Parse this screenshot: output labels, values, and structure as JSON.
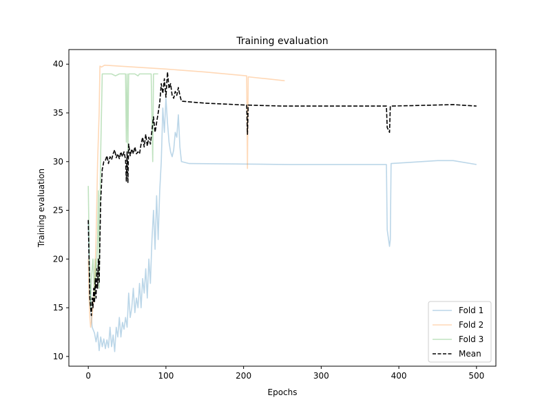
{
  "chart_data": {
    "type": "line",
    "title": "Training evaluation",
    "xlabel": "Epochs",
    "ylabel": "Training evaluation",
    "xlim": [
      -25,
      525
    ],
    "ylim": [
      9.0,
      41.5
    ],
    "xticks": [
      0,
      100,
      200,
      300,
      400,
      500
    ],
    "yticks": [
      10,
      15,
      20,
      25,
      30,
      35,
      40
    ],
    "grid": false,
    "legend": "lower-right",
    "series": [
      {
        "name": "Fold 1",
        "color": "#1f77b4",
        "alpha": 0.3,
        "dashed": false,
        "points": [
          [
            0,
            24
          ],
          [
            1,
            20
          ],
          [
            2,
            17
          ],
          [
            3,
            15
          ],
          [
            4,
            14
          ],
          [
            5,
            13
          ],
          [
            6,
            12.8
          ],
          [
            8,
            12.4
          ],
          [
            10,
            11.5
          ],
          [
            12,
            12.5
          ],
          [
            14,
            10.6
          ],
          [
            16,
            12
          ],
          [
            18,
            11
          ],
          [
            20,
            11.8
          ],
          [
            22,
            10.8
          ],
          [
            24,
            11.7
          ],
          [
            26,
            10.9
          ],
          [
            28,
            13
          ],
          [
            30,
            11
          ],
          [
            32,
            12.2
          ],
          [
            34,
            10.5
          ],
          [
            36,
            13
          ],
          [
            38,
            12
          ],
          [
            40,
            14
          ],
          [
            42,
            12
          ],
          [
            44,
            13.5
          ],
          [
            46,
            12.8
          ],
          [
            48,
            14
          ],
          [
            50,
            13
          ],
          [
            52,
            16.5
          ],
          [
            54,
            14
          ],
          [
            56,
            15
          ],
          [
            58,
            17
          ],
          [
            60,
            14.5
          ],
          [
            62,
            16
          ],
          [
            64,
            15
          ],
          [
            66,
            17.5
          ],
          [
            68,
            15
          ],
          [
            70,
            18
          ],
          [
            72,
            16.5
          ],
          [
            74,
            19
          ],
          [
            76,
            16
          ],
          [
            78,
            20
          ],
          [
            80,
            17.5
          ],
          [
            82,
            22
          ],
          [
            84,
            25
          ],
          [
            86,
            21
          ],
          [
            88,
            26.5
          ],
          [
            90,
            22
          ],
          [
            92,
            27
          ],
          [
            94,
            30
          ],
          [
            96,
            35.5
          ],
          [
            98,
            33
          ],
          [
            100,
            36.5
          ],
          [
            102,
            34
          ],
          [
            104,
            32
          ],
          [
            106,
            31
          ],
          [
            108,
            30.5
          ],
          [
            110,
            31.2
          ],
          [
            112,
            33
          ],
          [
            114,
            32.5
          ],
          [
            116,
            34.8
          ],
          [
            118,
            31.5
          ],
          [
            120,
            30
          ],
          [
            130,
            29.8
          ],
          [
            200,
            29.75
          ],
          [
            260,
            29.7
          ],
          [
            300,
            29.7
          ],
          [
            384,
            29.7
          ],
          [
            385,
            23
          ],
          [
            388,
            21.3
          ],
          [
            389,
            22
          ],
          [
            390,
            29.8
          ],
          [
            410,
            29.9
          ],
          [
            450,
            30.1
          ],
          [
            470,
            30.1
          ],
          [
            500,
            29.7
          ]
        ]
      },
      {
        "name": "Fold 2",
        "color": "#ff7f0e",
        "alpha": 0.3,
        "dashed": false,
        "points": [
          [
            0,
            20
          ],
          [
            1,
            16
          ],
          [
            2,
            14
          ],
          [
            3,
            13
          ],
          [
            4,
            13.5
          ],
          [
            6,
            15
          ],
          [
            8,
            17
          ],
          [
            10,
            22
          ],
          [
            12,
            30
          ],
          [
            14,
            35
          ],
          [
            15,
            39.8
          ],
          [
            17,
            39.7
          ],
          [
            19,
            39.8
          ],
          [
            21,
            39.9
          ],
          [
            40,
            39.8
          ],
          [
            100,
            39.5
          ],
          [
            150,
            39.2
          ],
          [
            204,
            38.8
          ],
          [
            205,
            29.3
          ],
          [
            206,
            38.7
          ],
          [
            230,
            38.5
          ],
          [
            253,
            38.3
          ]
        ]
      },
      {
        "name": "Fold 3",
        "color": "#2ca02c",
        "alpha": 0.3,
        "dashed": false,
        "points": [
          [
            0,
            27.5
          ],
          [
            1,
            22
          ],
          [
            2,
            18
          ],
          [
            3,
            15
          ],
          [
            4,
            18
          ],
          [
            6,
            20
          ],
          [
            8,
            16
          ],
          [
            9,
            20
          ],
          [
            10,
            18
          ],
          [
            12,
            22
          ],
          [
            13,
            27
          ],
          [
            14,
            17
          ],
          [
            15,
            25
          ],
          [
            16,
            31
          ],
          [
            17,
            35
          ],
          [
            18,
            39
          ],
          [
            30,
            39
          ],
          [
            35,
            38.8
          ],
          [
            40,
            39
          ],
          [
            48,
            39
          ],
          [
            49,
            32
          ],
          [
            50,
            39
          ],
          [
            51,
            31
          ],
          [
            52,
            39
          ],
          [
            56,
            39
          ],
          [
            60,
            39
          ],
          [
            64,
            38.8
          ],
          [
            66,
            39
          ],
          [
            80,
            39
          ],
          [
            81,
            39
          ],
          [
            83,
            30
          ],
          [
            84,
            39
          ],
          [
            90,
            39
          ]
        ]
      },
      {
        "name": "Mean",
        "color": "#000000",
        "alpha": 1,
        "dashed": true,
        "points": [
          [
            0,
            24
          ],
          [
            1,
            20
          ],
          [
            2,
            16
          ],
          [
            3,
            15
          ],
          [
            4,
            14.2
          ],
          [
            5,
            16
          ],
          [
            6,
            15
          ],
          [
            7,
            17
          ],
          [
            8,
            15.5
          ],
          [
            9,
            18
          ],
          [
            10,
            16
          ],
          [
            11,
            19
          ],
          [
            12,
            17
          ],
          [
            13,
            20
          ],
          [
            14,
            17.5
          ],
          [
            15,
            22
          ],
          [
            16,
            26
          ],
          [
            18,
            29.2
          ],
          [
            20,
            30
          ],
          [
            22,
            30.1
          ],
          [
            24,
            30.6
          ],
          [
            26,
            29.8
          ],
          [
            28,
            30.5
          ],
          [
            30,
            30.2
          ],
          [
            32,
            30.8
          ],
          [
            34,
            31.2
          ],
          [
            36,
            30.4
          ],
          [
            38,
            30.8
          ],
          [
            40,
            30.3
          ],
          [
            42,
            31
          ],
          [
            44,
            30.5
          ],
          [
            46,
            31
          ],
          [
            48,
            30.2
          ],
          [
            49,
            28
          ],
          [
            50,
            31
          ],
          [
            51,
            27.8
          ],
          [
            52,
            31.8
          ],
          [
            54,
            30.6
          ],
          [
            56,
            31.3
          ],
          [
            58,
            30.8
          ],
          [
            60,
            31.5
          ],
          [
            62,
            30.8
          ],
          [
            64,
            31
          ],
          [
            66,
            30.8
          ],
          [
            68,
            31.8
          ],
          [
            70,
            32.5
          ],
          [
            72,
            31.5
          ],
          [
            74,
            32.8
          ],
          [
            76,
            31.6
          ],
          [
            78,
            32.5
          ],
          [
            80,
            31.8
          ],
          [
            82,
            33.2
          ],
          [
            84,
            34.6
          ],
          [
            86,
            33
          ],
          [
            88,
            34
          ],
          [
            90,
            35
          ],
          [
            92,
            36
          ],
          [
            94,
            38
          ],
          [
            96,
            37
          ],
          [
            98,
            38.5
          ],
          [
            100,
            36.6
          ],
          [
            102,
            39.2
          ],
          [
            104,
            37.5
          ],
          [
            106,
            38
          ],
          [
            108,
            36.8
          ],
          [
            110,
            36.5
          ],
          [
            112,
            37.2
          ],
          [
            114,
            36.8
          ],
          [
            116,
            37.6
          ],
          [
            118,
            36.8
          ],
          [
            120,
            36.2
          ],
          [
            150,
            36
          ],
          [
            204,
            35.8
          ],
          [
            205,
            32.8
          ],
          [
            206,
            35.8
          ],
          [
            250,
            35.7
          ],
          [
            300,
            35.7
          ],
          [
            384,
            35.7
          ],
          [
            385,
            33.5
          ],
          [
            388,
            33
          ],
          [
            389,
            35.7
          ],
          [
            420,
            35.75
          ],
          [
            470,
            35.85
          ],
          [
            500,
            35.7
          ]
        ]
      }
    ]
  }
}
